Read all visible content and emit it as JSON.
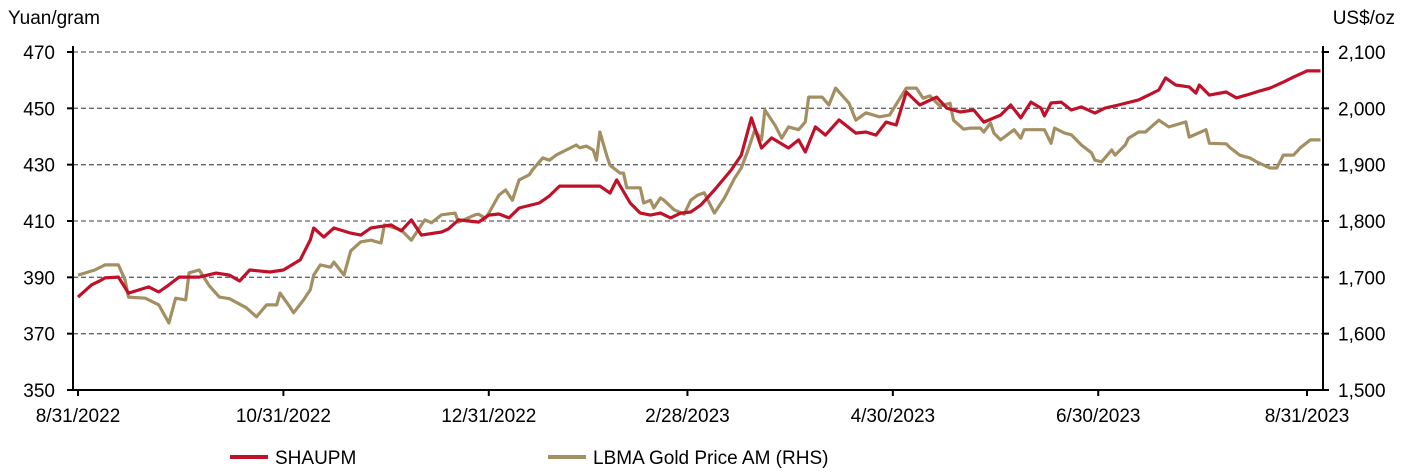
{
  "chart_data": {
    "type": "line",
    "x_unit": "days since 8/31/2022",
    "left_axis": {
      "label": "Yuan/gram",
      "ylim": [
        350,
        470
      ],
      "ticks": [
        350,
        370,
        390,
        410,
        430,
        450,
        470
      ],
      "tick_labels": [
        "350",
        "370",
        "390",
        "410",
        "430",
        "450",
        "470"
      ]
    },
    "right_axis": {
      "label": "US$/oz",
      "ylim": [
        1500,
        2100
      ],
      "ticks": [
        1500,
        1600,
        1700,
        1800,
        1900,
        2000,
        2100
      ],
      "tick_labels": [
        "1,500",
        "1,600",
        "1,700",
        "1,800",
        "1,900",
        "2,000",
        "2,100"
      ]
    },
    "x_ticks": [
      {
        "day": 0,
        "label": "8/31/2022"
      },
      {
        "day": 61,
        "label": "10/31/2022"
      },
      {
        "day": 122,
        "label": "12/31/2022"
      },
      {
        "day": 181,
        "label": "2/28/2023"
      },
      {
        "day": 242,
        "label": "4/30/2023"
      },
      {
        "day": 303,
        "label": "6/30/2023"
      },
      {
        "day": 365,
        "label": "8/31/2023"
      }
    ],
    "xlim": [
      -1.5,
      370
    ],
    "grid": "horizontal dashed",
    "legend_position": "bottom",
    "series": [
      {
        "name": "SHAUPM",
        "axis": "left",
        "color": "#c0112b",
        "points": [
          [
            0,
            383.0
          ],
          [
            4,
            387.3
          ],
          [
            7,
            389.1
          ],
          [
            8,
            389.8
          ],
          [
            12,
            390.1
          ],
          [
            15,
            384.4
          ],
          [
            18,
            385.5
          ],
          [
            21,
            386.6
          ],
          [
            24,
            384.8
          ],
          [
            27,
            387.3
          ],
          [
            30,
            390.1
          ],
          [
            36,
            390.1
          ],
          [
            41,
            391.5
          ],
          [
            45,
            390.8
          ],
          [
            48,
            388.7
          ],
          [
            51,
            392.6
          ],
          [
            57,
            391.9
          ],
          [
            61,
            392.6
          ],
          [
            66,
            396.2
          ],
          [
            69,
            403.3
          ],
          [
            70,
            407.5
          ],
          [
            73,
            404.3
          ],
          [
            76,
            407.5
          ],
          [
            81,
            405.7
          ],
          [
            84,
            405.0
          ],
          [
            87,
            407.5
          ],
          [
            93,
            408.6
          ],
          [
            96,
            406.5
          ],
          [
            99,
            410.4
          ],
          [
            102,
            405.0
          ],
          [
            108,
            406.1
          ],
          [
            110,
            407.2
          ],
          [
            113,
            410.4
          ],
          [
            119,
            409.6
          ],
          [
            122,
            412.1
          ],
          [
            125,
            412.5
          ],
          [
            128,
            411.1
          ],
          [
            131,
            414.6
          ],
          [
            137,
            416.4
          ],
          [
            140,
            418.9
          ],
          [
            143,
            422.4
          ],
          [
            155,
            422.4
          ],
          [
            158,
            419.9
          ],
          [
            160,
            424.6
          ],
          [
            164,
            416.4
          ],
          [
            167,
            412.8
          ],
          [
            170,
            412.1
          ],
          [
            173,
            412.8
          ],
          [
            176,
            411.1
          ],
          [
            179,
            412.8
          ],
          [
            182,
            413.2
          ],
          [
            185,
            415.7
          ],
          [
            189,
            421.0
          ],
          [
            194,
            428.1
          ],
          [
            197,
            433.4
          ],
          [
            200,
            446.6
          ],
          [
            203,
            435.9
          ],
          [
            206,
            439.5
          ],
          [
            211,
            435.9
          ],
          [
            214,
            438.8
          ],
          [
            216,
            434.5
          ],
          [
            219,
            443.4
          ],
          [
            222,
            440.5
          ],
          [
            226,
            445.9
          ],
          [
            231,
            441.2
          ],
          [
            234,
            441.6
          ],
          [
            237,
            440.5
          ],
          [
            240,
            445.1
          ],
          [
            243,
            444.1
          ],
          [
            246,
            455.8
          ],
          [
            250,
            451.2
          ],
          [
            255,
            454.0
          ],
          [
            258,
            450.1
          ],
          [
            262,
            448.7
          ],
          [
            266,
            449.4
          ],
          [
            269,
            445.1
          ],
          [
            274,
            447.6
          ],
          [
            277,
            451.2
          ],
          [
            280,
            446.6
          ],
          [
            283,
            452.2
          ],
          [
            286,
            450.1
          ],
          [
            287,
            447.3
          ],
          [
            289,
            451.9
          ],
          [
            292,
            452.2
          ],
          [
            295,
            449.4
          ],
          [
            298,
            450.5
          ],
          [
            302,
            448.3
          ],
          [
            305,
            450.1
          ],
          [
            309,
            451.2
          ],
          [
            315,
            453.0
          ],
          [
            318,
            454.7
          ],
          [
            321,
            456.5
          ],
          [
            323,
            460.8
          ],
          [
            326,
            458.3
          ],
          [
            330,
            457.6
          ],
          [
            332,
            455.4
          ],
          [
            333,
            458.3
          ],
          [
            336,
            454.7
          ],
          [
            341,
            455.8
          ],
          [
            344,
            453.7
          ],
          [
            347,
            454.7
          ],
          [
            351,
            456.2
          ],
          [
            354,
            457.2
          ],
          [
            358,
            459.3
          ],
          [
            361,
            461.1
          ],
          [
            365,
            463.3
          ],
          [
            369,
            463.3
          ]
        ]
      },
      {
        "name": "LBMA Gold Price AM (RHS)",
        "axis": "right",
        "color": "#a38f62",
        "points": [
          [
            0,
            1704
          ],
          [
            5,
            1713
          ],
          [
            8,
            1722
          ],
          [
            12,
            1722
          ],
          [
            14,
            1695
          ],
          [
            15,
            1665
          ],
          [
            20,
            1663
          ],
          [
            24,
            1651
          ],
          [
            27,
            1619
          ],
          [
            29,
            1663
          ],
          [
            32,
            1660
          ],
          [
            33,
            1708
          ],
          [
            36,
            1713
          ],
          [
            39,
            1685
          ],
          [
            42,
            1665
          ],
          [
            45,
            1662
          ],
          [
            50,
            1646
          ],
          [
            53,
            1630
          ],
          [
            56,
            1651
          ],
          [
            59,
            1651
          ],
          [
            60,
            1672
          ],
          [
            63,
            1647
          ],
          [
            64,
            1637
          ],
          [
            67,
            1660
          ],
          [
            69,
            1678
          ],
          [
            70,
            1704
          ],
          [
            72,
            1722
          ],
          [
            75,
            1718
          ],
          [
            76,
            1727
          ],
          [
            79,
            1704
          ],
          [
            81,
            1747
          ],
          [
            84,
            1763
          ],
          [
            87,
            1766
          ],
          [
            90,
            1761
          ],
          [
            91,
            1793
          ],
          [
            96,
            1784
          ],
          [
            99,
            1766
          ],
          [
            103,
            1802
          ],
          [
            105,
            1797
          ],
          [
            108,
            1811
          ],
          [
            112,
            1814
          ],
          [
            113,
            1798
          ],
          [
            118,
            1811
          ],
          [
            119,
            1812
          ],
          [
            121,
            1805
          ],
          [
            122,
            1814
          ],
          [
            125,
            1846
          ],
          [
            127,
            1855
          ],
          [
            129,
            1837
          ],
          [
            131,
            1873
          ],
          [
            134,
            1882
          ],
          [
            135,
            1891
          ],
          [
            138,
            1912
          ],
          [
            140,
            1908
          ],
          [
            142,
            1917
          ],
          [
            145,
            1926
          ],
          [
            148,
            1935
          ],
          [
            149,
            1930
          ],
          [
            151,
            1933
          ],
          [
            153,
            1926
          ],
          [
            154,
            1908
          ],
          [
            155,
            1958
          ],
          [
            157,
            1917
          ],
          [
            158,
            1899
          ],
          [
            161,
            1885
          ],
          [
            162,
            1885
          ],
          [
            163,
            1859
          ],
          [
            167,
            1859
          ],
          [
            168,
            1832
          ],
          [
            170,
            1837
          ],
          [
            171,
            1823
          ],
          [
            173,
            1841
          ],
          [
            174,
            1837
          ],
          [
            177,
            1820
          ],
          [
            180,
            1812
          ],
          [
            182,
            1837
          ],
          [
            184,
            1846
          ],
          [
            186,
            1850
          ],
          [
            189,
            1814
          ],
          [
            192,
            1841
          ],
          [
            195,
            1876
          ],
          [
            197,
            1894
          ],
          [
            199,
            1926
          ],
          [
            201,
            1962
          ],
          [
            203,
            1944
          ],
          [
            204,
            1997
          ],
          [
            207,
            1970
          ],
          [
            209,
            1947
          ],
          [
            211,
            1967
          ],
          [
            214,
            1962
          ],
          [
            216,
            1976
          ],
          [
            217,
            2020
          ],
          [
            221,
            2020
          ],
          [
            223,
            2006
          ],
          [
            225,
            2036
          ],
          [
            229,
            2009
          ],
          [
            231,
            1979
          ],
          [
            234,
            1992
          ],
          [
            238,
            1985
          ],
          [
            241,
            1988
          ],
          [
            246,
            2036
          ],
          [
            249,
            2036
          ],
          [
            251,
            2018
          ],
          [
            253,
            2022
          ],
          [
            256,
            2004
          ],
          [
            259,
            2009
          ],
          [
            260,
            1979
          ],
          [
            263,
            1963
          ],
          [
            265,
            1965
          ],
          [
            268,
            1965
          ],
          [
            269,
            1958
          ],
          [
            271,
            1974
          ],
          [
            272,
            1956
          ],
          [
            274,
            1944
          ],
          [
            278,
            1962
          ],
          [
            280,
            1947
          ],
          [
            281,
            1962
          ],
          [
            287,
            1962
          ],
          [
            289,
            1938
          ],
          [
            290,
            1965
          ],
          [
            293,
            1956
          ],
          [
            295,
            1953
          ],
          [
            298,
            1935
          ],
          [
            301,
            1921
          ],
          [
            302,
            1908
          ],
          [
            304,
            1905
          ],
          [
            307,
            1926
          ],
          [
            308,
            1917
          ],
          [
            311,
            1935
          ],
          [
            312,
            1947
          ],
          [
            315,
            1958
          ],
          [
            317,
            1958
          ],
          [
            321,
            1979
          ],
          [
            324,
            1967
          ],
          [
            329,
            1976
          ],
          [
            330,
            1949
          ],
          [
            335,
            1962
          ],
          [
            336,
            1938
          ],
          [
            341,
            1937
          ],
          [
            342,
            1931
          ],
          [
            345,
            1917
          ],
          [
            346,
            1915
          ],
          [
            348,
            1912
          ],
          [
            350,
            1905
          ],
          [
            354,
            1894
          ],
          [
            356,
            1894
          ],
          [
            358,
            1917
          ],
          [
            361,
            1917
          ],
          [
            363,
            1930
          ],
          [
            366,
            1944
          ],
          [
            369,
            1944
          ]
        ]
      }
    ]
  }
}
